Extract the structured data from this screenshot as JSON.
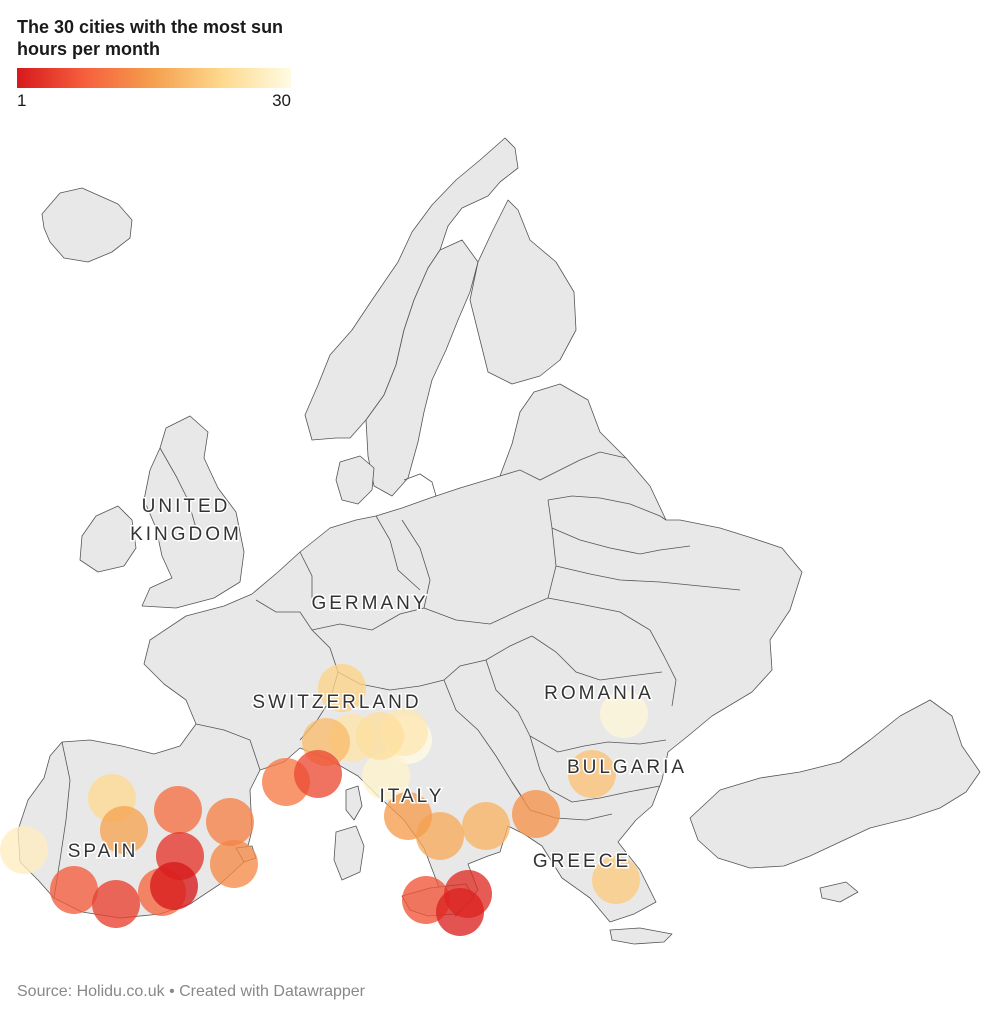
{
  "header": {
    "title": "The 30 cities with the most sun hours per month"
  },
  "legend": {
    "min_label": "1",
    "max_label": "30",
    "min_color": "#d7191c",
    "max_color": "#ffffe5",
    "gradient": [
      "#d7191c",
      "#f6603e",
      "#f5a04e",
      "#fed98e",
      "#fffbe3"
    ]
  },
  "map": {
    "land_color": "#e8e8e8",
    "border_color": "#555555",
    "country_labels": [
      {
        "id": "uk-1",
        "text": "UNITED"
      },
      {
        "id": "uk-2",
        "text": "KINGDOM"
      },
      {
        "id": "germany",
        "text": "GERMANY"
      },
      {
        "id": "switzerland",
        "text": "SWITZERLAND"
      },
      {
        "id": "romania",
        "text": "ROMANIA"
      },
      {
        "id": "bulgaria",
        "text": "BULGARIA"
      },
      {
        "id": "italy",
        "text": "ITALY"
      },
      {
        "id": "spain",
        "text": "SPAIN"
      },
      {
        "id": "greece",
        "text": "GREECE"
      }
    ]
  },
  "chart_data": {
    "type": "scatter",
    "title": "The 30 cities with the most sun hours per month",
    "color_scale": {
      "min": 1,
      "max": 30
    },
    "cities": [
      {
        "rank": 1
      },
      {
        "rank": 2
      },
      {
        "rank": 3
      },
      {
        "rank": 4
      },
      {
        "rank": 5
      },
      {
        "rank": 6
      },
      {
        "rank": 7
      },
      {
        "rank": 8
      },
      {
        "rank": 9
      },
      {
        "rank": 10
      },
      {
        "rank": 11
      },
      {
        "rank": 12
      },
      {
        "rank": 13
      },
      {
        "rank": 14
      },
      {
        "rank": 15
      },
      {
        "rank": 16
      },
      {
        "rank": 17
      },
      {
        "rank": 18
      },
      {
        "rank": 19
      },
      {
        "rank": 20
      },
      {
        "rank": 21
      },
      {
        "rank": 22
      },
      {
        "rank": 23
      },
      {
        "rank": 24
      },
      {
        "rank": 25
      },
      {
        "rank": 26
      },
      {
        "rank": 27
      },
      {
        "rank": 28
      },
      {
        "rank": 29
      },
      {
        "rank": 30
      }
    ]
  },
  "footer": {
    "source": "Source: Holidu.co.uk • Created with Datawrapper"
  }
}
